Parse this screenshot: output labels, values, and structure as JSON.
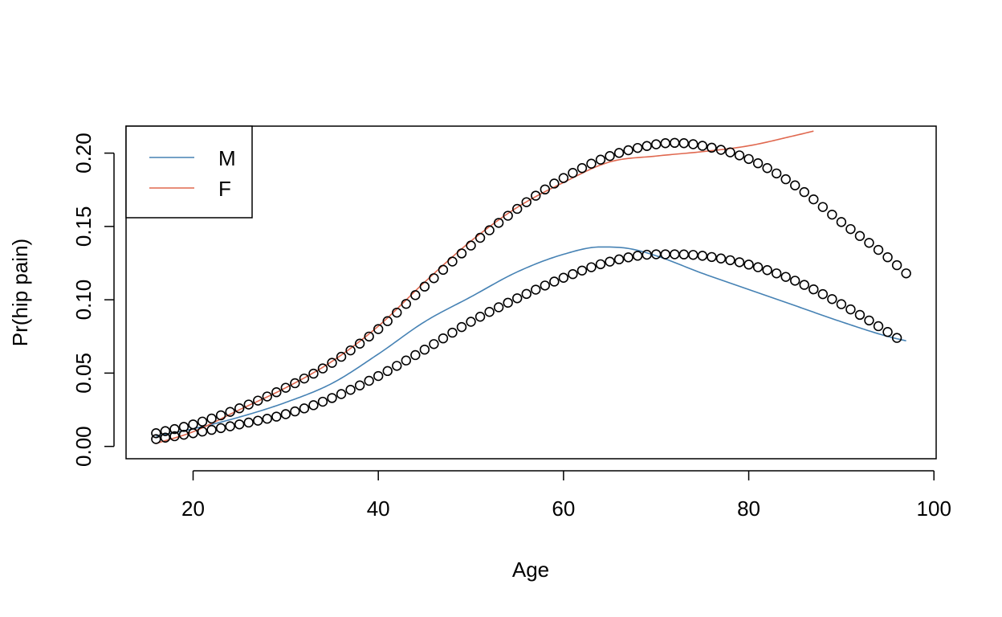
{
  "chart_data": {
    "type": "line",
    "xlabel": "Age",
    "ylabel": "Pr(hip pain)",
    "xlim": [
      12.76,
      100.24
    ],
    "ylim": [
      -0.0084,
      0.2184
    ],
    "x_ticks": [
      20,
      40,
      60,
      80,
      100
    ],
    "x_tick_labels": [
      "20",
      "40",
      "60",
      "80",
      "100"
    ],
    "y_ticks": [
      0.0,
      0.05,
      0.1,
      0.15,
      0.2
    ],
    "y_tick_labels": [
      "0.00",
      "0.05",
      "0.10",
      "0.15",
      "0.20"
    ],
    "grid": false,
    "legend": {
      "placement": "top-left",
      "entries": [
        {
          "label": "M",
          "color": "#4682B4"
        },
        {
          "label": "F",
          "color": "#E0684F"
        }
      ]
    },
    "series": [
      {
        "name": "M",
        "style": "line",
        "color": "#4682B4",
        "x": [
          16,
          20,
          25,
          30,
          35,
          40,
          45,
          50,
          55,
          60,
          64,
          67,
          70,
          75,
          80,
          85,
          90,
          95,
          97
        ],
        "y": [
          0.007,
          0.012,
          0.02,
          0.03,
          0.043,
          0.063,
          0.085,
          0.102,
          0.119,
          0.131,
          0.136,
          0.135,
          0.13,
          0.118,
          0.107,
          0.096,
          0.085,
          0.075,
          0.072
        ]
      },
      {
        "style": "line",
        "color": "#E0684F",
        "x": [
          16,
          20,
          25,
          30,
          35,
          40,
          45,
          50,
          55,
          60,
          65,
          70,
          75,
          80,
          85,
          87
        ],
        "y": [
          0.002,
          0.01,
          0.025,
          0.04,
          0.058,
          0.082,
          0.112,
          0.14,
          0.163,
          0.18,
          0.194,
          0.198,
          0.201,
          0.205,
          0.212,
          0.215
        ]
      },
      {
        "style": "points",
        "color": "#000000",
        "x": [
          16,
          20,
          25,
          30,
          35,
          40,
          45,
          50,
          55,
          60,
          65,
          70,
          72,
          75,
          80,
          85,
          90,
          95,
          97
        ],
        "y": [
          0.009,
          0.015,
          0.026,
          0.04,
          0.057,
          0.08,
          0.109,
          0.137,
          0.162,
          0.183,
          0.198,
          0.206,
          0.207,
          0.205,
          0.196,
          0.178,
          0.153,
          0.129,
          0.118
        ]
      },
      {
        "style": "points",
        "color": "#000000",
        "x": [
          16,
          20,
          25,
          30,
          35,
          40,
          45,
          50,
          55,
          60,
          65,
          70,
          72,
          75,
          80,
          85,
          90,
          94,
          96
        ],
        "y": [
          0.005,
          0.009,
          0.015,
          0.022,
          0.033,
          0.048,
          0.066,
          0.085,
          0.101,
          0.115,
          0.126,
          0.131,
          0.131,
          0.13,
          0.124,
          0.113,
          0.097,
          0.082,
          0.074
        ]
      }
    ]
  }
}
